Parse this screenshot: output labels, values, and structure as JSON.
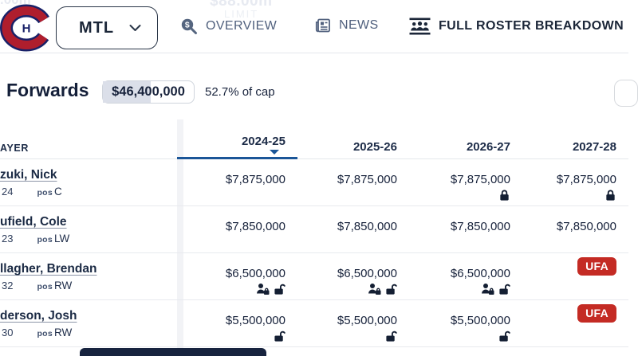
{
  "background_fragments": {
    "top_left": ".00m",
    "limit_value": "$88.00m",
    "limit_label": "LIMIT"
  },
  "nav": {
    "team": "MTL",
    "overview_label": "OVERVIEW",
    "news_label": "NEWS",
    "roster_label": "FULL ROSTER BREAKDOWN"
  },
  "section": {
    "title": "Forwards",
    "cap_amount": "$46,400,000",
    "cap_pct_text": "52.7% of cap",
    "cap_fill_pct": 52.7
  },
  "table": {
    "player_header": "AYER",
    "season_headers": [
      "2024-25",
      "2025-26",
      "2026-27",
      "2027-28"
    ],
    "sorted_column": "2024-25",
    "rows": [
      {
        "name": "zuki, Nick",
        "age": "24",
        "pos_label": "pos",
        "pos": "C",
        "cells": [
          {
            "amount": "$7,875,000",
            "icons": []
          },
          {
            "amount": "$7,875,000",
            "icons": []
          },
          {
            "amount": "$7,875,000",
            "icons": [
              "lock-closed"
            ]
          },
          {
            "amount": "$7,875,000",
            "icons": [
              "lock-closed"
            ]
          }
        ]
      },
      {
        "name": "ufield, Cole",
        "age": "23",
        "pos_label": "pos",
        "pos": "LW",
        "cells": [
          {
            "amount": "$7,850,000",
            "icons": []
          },
          {
            "amount": "$7,850,000",
            "icons": []
          },
          {
            "amount": "$7,850,000",
            "icons": []
          },
          {
            "amount": "$7,850,000",
            "icons": []
          }
        ]
      },
      {
        "name": "llagher, Brendan",
        "age": "32",
        "pos_label": "pos",
        "pos": "RW",
        "cells": [
          {
            "amount": "$6,500,000",
            "icons": [
              "person-lock",
              "lock-open"
            ]
          },
          {
            "amount": "$6,500,000",
            "icons": [
              "person-lock",
              "lock-open"
            ]
          },
          {
            "amount": "$6,500,000",
            "icons": [
              "person-lock",
              "lock-open"
            ]
          },
          {
            "badge": "UFA"
          }
        ]
      },
      {
        "name": "derson, Josh",
        "age": "30",
        "pos_label": "pos",
        "pos": "RW",
        "cells": [
          {
            "amount": "$5,500,000",
            "icons": [
              "lock-open"
            ]
          },
          {
            "amount": "$5,500,000",
            "icons": [
              "lock-open"
            ]
          },
          {
            "amount": "$5,500,000",
            "icons": [
              "lock-open"
            ]
          },
          {
            "badge": "UFA"
          }
        ]
      }
    ]
  },
  "colors": {
    "accent_blue": "#1b5698",
    "badge_red": "#c42b24",
    "nav_active": "#1b2638",
    "nav_muted": "#51617e",
    "icon_navy": "#141f33",
    "pill_fill": "#dbdfe9",
    "canadiens_red": "#af1e2d",
    "canadiens_blue": "#192168"
  }
}
